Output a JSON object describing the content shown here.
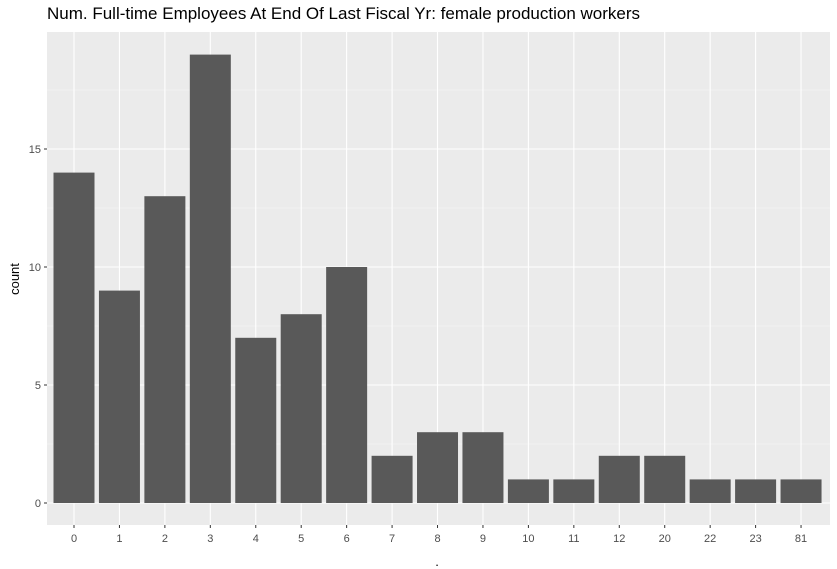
{
  "chart_data": {
    "type": "bar",
    "title": "Num. Full-time Employees At End Of Last Fiscal Yr: female production workers",
    "xlabel": ".",
    "ylabel": "count",
    "categories": [
      "0",
      "1",
      "2",
      "3",
      "4",
      "5",
      "6",
      "7",
      "8",
      "9",
      "10",
      "11",
      "12",
      "20",
      "22",
      "23",
      "81"
    ],
    "values": [
      14,
      9,
      13,
      19,
      7,
      8,
      10,
      2,
      3,
      3,
      1,
      1,
      2,
      2,
      1,
      1,
      1
    ],
    "ylim": [
      0,
      20
    ],
    "yticks": [
      0,
      5,
      10,
      15
    ],
    "grid": true,
    "legend": "none",
    "colors": {
      "bar": "#595959",
      "panel": "#ebebeb",
      "grid_major": "#ffffff",
      "tick_text": "#4d4d4d"
    }
  }
}
